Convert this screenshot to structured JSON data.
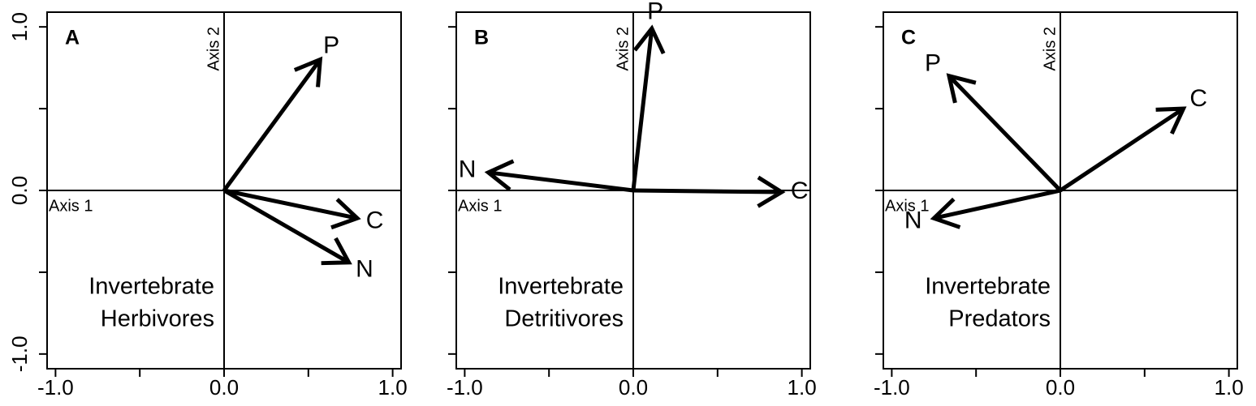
{
  "chart_data": [
    {
      "type": "biplot",
      "panel": "A",
      "annotation": [
        "Invertebrate",
        "Herbivores"
      ],
      "x_label": "Axis 1",
      "y_label": "Axis 2",
      "vectors": [
        {
          "name": "P",
          "x": 0.57,
          "y": 0.8
        },
        {
          "name": "C",
          "x": 0.79,
          "y": -0.17
        },
        {
          "name": "N",
          "x": 0.74,
          "y": -0.44
        }
      ],
      "xlim": [
        -1.05,
        1.05
      ],
      "ylim": [
        -1.09,
        1.09
      ],
      "xticks": [
        {
          "value": -1,
          "label": "-1.0"
        },
        {
          "value": 0,
          "label": "0.0"
        },
        {
          "value": 1,
          "label": "1.0"
        }
      ],
      "minor_xticks": [
        -0.5,
        0.5
      ],
      "yticks": [
        {
          "value": -1,
          "label": "-1.0"
        },
        {
          "value": 0,
          "label": "0.0"
        },
        {
          "value": 1,
          "label": "1.0"
        }
      ],
      "minor_yticks": [
        -0.5,
        0.5
      ]
    },
    {
      "type": "biplot",
      "panel": "B",
      "annotation": [
        "Invertebrate",
        "Detritivores"
      ],
      "x_label": "Axis 1",
      "y_label": "Axis 2",
      "vectors": [
        {
          "name": "P",
          "x": 0.11,
          "y": 0.99
        },
        {
          "name": "N",
          "x": -0.86,
          "y": 0.11
        },
        {
          "name": "C",
          "x": 0.88,
          "y": -0.01
        }
      ],
      "xlim": [
        -1.05,
        1.05
      ],
      "ylim": [
        -1.09,
        1.09
      ],
      "xticks": [
        {
          "value": -1,
          "label": "-1.0"
        },
        {
          "value": 0,
          "label": "0.0"
        },
        {
          "value": 1,
          "label": "1.0"
        }
      ],
      "minor_xticks": [
        -0.5,
        0.5
      ],
      "minor_yticks": [
        -1,
        -0.5,
        0,
        0.5,
        1
      ]
    },
    {
      "type": "biplot",
      "panel": "C",
      "annotation": [
        "Invertebrate",
        "Predators"
      ],
      "x_label": "Axis 1",
      "y_label": "Axis 2",
      "vectors": [
        {
          "name": "P",
          "x": -0.66,
          "y": 0.7
        },
        {
          "name": "C",
          "x": 0.73,
          "y": 0.5
        },
        {
          "name": "N",
          "x": -0.75,
          "y": -0.17
        }
      ],
      "xlim": [
        -1.05,
        1.05
      ],
      "ylim": [
        -1.09,
        1.09
      ],
      "xticks": [
        {
          "value": -1,
          "label": "-1.0"
        },
        {
          "value": 0,
          "label": "0.0"
        },
        {
          "value": 1,
          "label": "1.0"
        }
      ],
      "minor_xticks": [
        -0.5,
        0.5
      ],
      "minor_yticks": [
        -1,
        -0.5,
        0,
        0.5,
        1
      ]
    }
  ]
}
